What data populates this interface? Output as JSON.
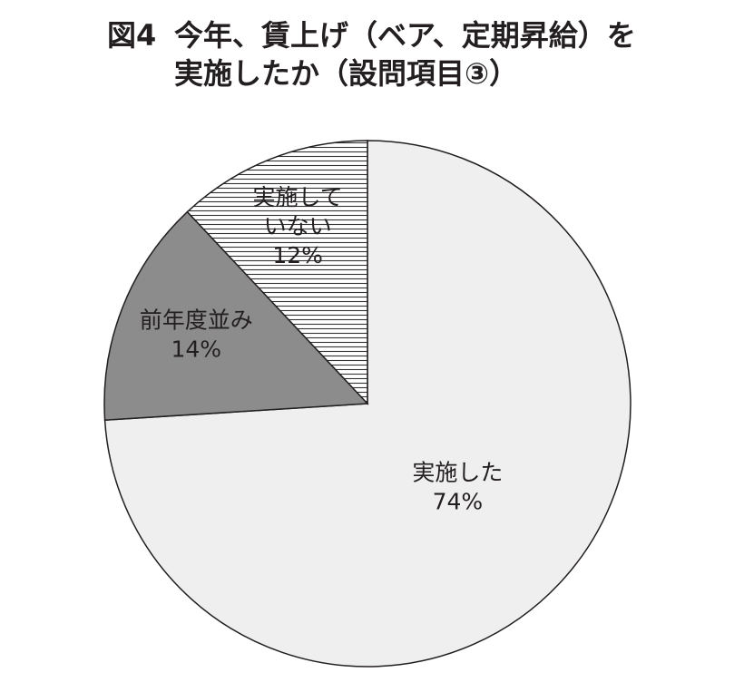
{
  "chart_data": {
    "type": "pie",
    "figure_label": "図4",
    "title_lines": [
      "今年、賃上げ（ベア、定期昇給）を",
      "実施したか（設問項目③）"
    ],
    "categories": [
      "実施した",
      "前年度並み",
      "実施して\nいない"
    ],
    "values": [
      74,
      14,
      12
    ],
    "value_labels": [
      "74%",
      "14%",
      "12%"
    ],
    "colors": [
      "#efefef",
      "#8c8c8c",
      "#ffffff"
    ],
    "patterns": [
      "solid",
      "solid",
      "horizontal-lines"
    ],
    "start": "top",
    "direction": "clockwise"
  }
}
